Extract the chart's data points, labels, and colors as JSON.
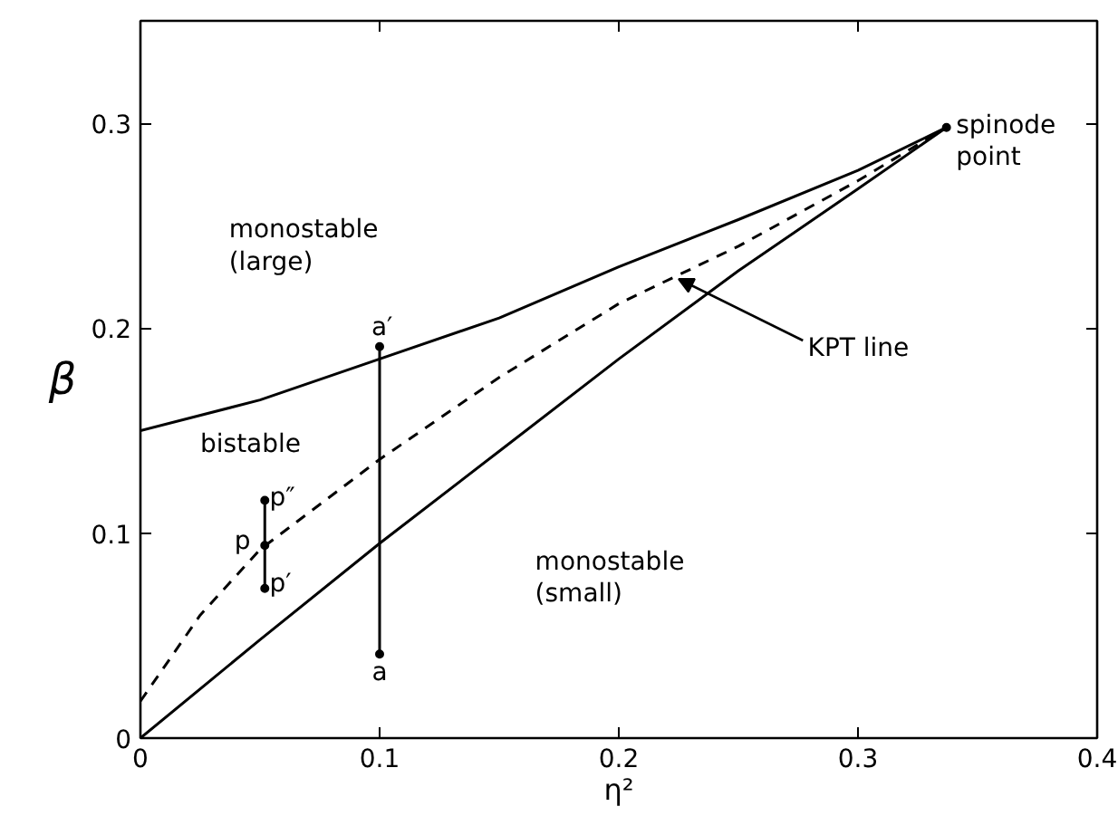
{
  "chart_data": {
    "type": "line",
    "xlabel": "η²",
    "ylabel": "β",
    "xlim": [
      0,
      0.4
    ],
    "ylim": [
      0,
      0.35
    ],
    "xticks": [
      0,
      0.1,
      0.2,
      0.3,
      0.4
    ],
    "yticks": [
      0,
      0.1,
      0.2,
      0.3
    ],
    "grid": false,
    "series": [
      {
        "color": "#000000",
        "line_style": "solid",
        "marker": "none",
        "x": [
          0,
          0.05,
          0.1,
          0.15,
          0.2,
          0.25,
          0.3,
          0.337
        ],
        "values": [
          0.15,
          0.165,
          0.185,
          0.205,
          0.23,
          0.253,
          0.277,
          0.298
        ]
      },
      {
        "color": "#000000",
        "line_style": "dashed",
        "marker": "none",
        "x": [
          0,
          0.025,
          0.05,
          0.1,
          0.15,
          0.2,
          0.25,
          0.3,
          0.337
        ],
        "values": [
          0.018,
          0.06,
          0.092,
          0.136,
          0.176,
          0.212,
          0.24,
          0.272,
          0.298
        ]
      },
      {
        "color": "#000000",
        "line_style": "solid",
        "marker": "none",
        "x": [
          0,
          0.05,
          0.1,
          0.15,
          0.2,
          0.25,
          0.3,
          0.337
        ],
        "values": [
          0,
          0.048,
          0.095,
          0.14,
          0.185,
          0.228,
          0.268,
          0.298
        ]
      },
      {
        "color": "#000000",
        "line_style": "solid",
        "marker": "circle",
        "x": [
          0.1,
          0.1
        ],
        "values": [
          0.041,
          0.191
        ]
      },
      {
        "color": "#000000",
        "line_style": "solid",
        "marker": "circle",
        "x": [
          0.052,
          0.052,
          0.052
        ],
        "values": [
          0.073,
          0.094,
          0.116
        ]
      },
      {
        "color": "#000000",
        "line_style": "solid",
        "marker": "circle",
        "x": [
          0.337
        ],
        "values": [
          0.298
        ]
      }
    ],
    "annotations": [
      "monostable\n(large)",
      "bistable",
      "monostable\n(small)",
      "spinode\npoint",
      "a′",
      "a",
      "p″",
      "p",
      "p′",
      {
        "text": "KPT line",
        "x": 0.225,
        "y": 0.224
      }
    ]
  }
}
